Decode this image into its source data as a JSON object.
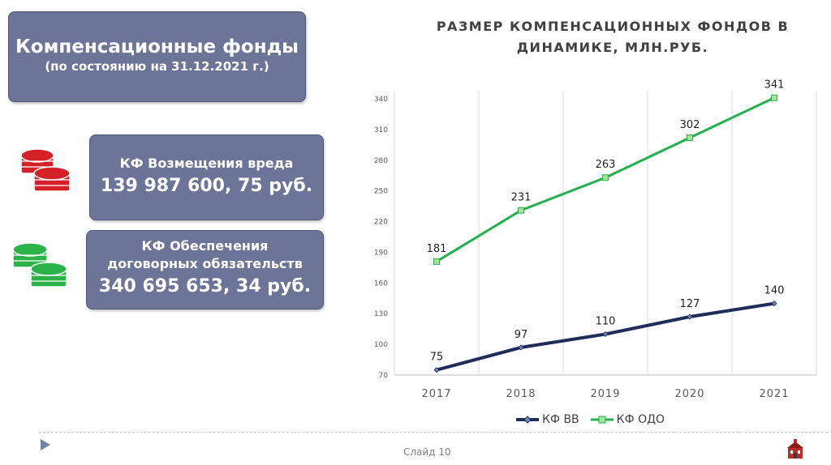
{
  "title_box": {
    "main": "Компенсационные фонды",
    "sub": "(по состоянию на 31.12.2021 г.)"
  },
  "fund_vv": {
    "label": "КФ Возмещения вреда",
    "amount": "139 987 600, 75 руб."
  },
  "fund_odo": {
    "label_line1": "КФ Обеспечения",
    "label_line2": "договорных обязательств",
    "amount": "340 695 653, 34 руб."
  },
  "chart_title_line1": "РАЗМЕР КОМПЕНСАЦИОННЫХ ФОНДОВ В",
  "chart_title_line2": "ДИНАМИКЕ, МЛН.РУБ.",
  "chart_data": {
    "type": "line",
    "x": [
      "2017",
      "2018",
      "2019",
      "2020",
      "2021"
    ],
    "series": [
      {
        "name": "КФ ВВ",
        "values": [
          75,
          97,
          110,
          127,
          140
        ],
        "color": "#1f2d5a"
      },
      {
        "name": "КФ ОДО",
        "values": [
          181,
          231,
          263,
          302,
          341
        ],
        "color": "#22b14c"
      }
    ],
    "ylim": [
      70,
      340
    ],
    "yticks": [
      "70",
      "100",
      "130",
      "160",
      "190",
      "220",
      "250",
      "280",
      "310",
      "340"
    ],
    "grid": "vertical",
    "legend": "bottom"
  },
  "footer": {
    "slide_label": "Слайд 10"
  },
  "colors": {
    "box_fill": "#6c7497",
    "coins_red": "#d62027",
    "coins_green": "#2bb34a"
  },
  "icons": {
    "coins_vv": "red-coins-icon",
    "coins_odo": "green-coins-icon",
    "nav": "play-arrow-icon",
    "logo": "building-logo-icon"
  }
}
